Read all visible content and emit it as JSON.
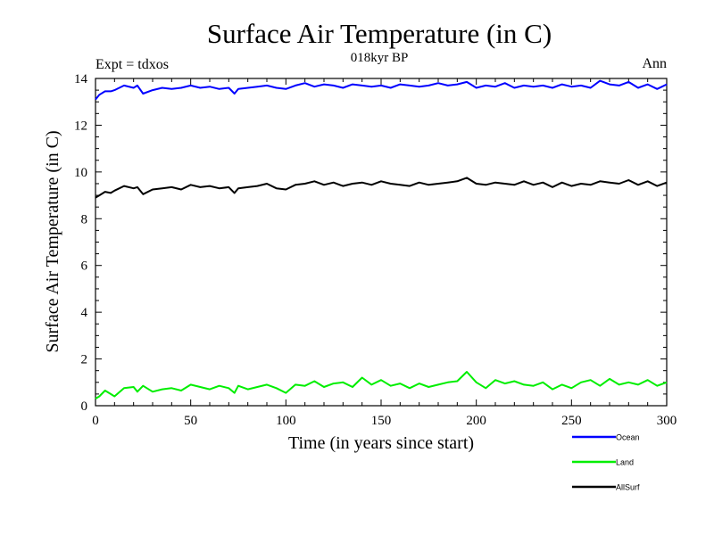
{
  "chart_data": {
    "type": "line",
    "title": "Surface Air Temperature (in C)",
    "subtitle": "018kyr BP",
    "annotation_left": "Expt = tdxos",
    "annotation_right": "Ann",
    "xlabel": "Time (in years since start)",
    "ylabel": "Surface Air Temperature (in C)",
    "xlim": [
      0,
      300
    ],
    "ylim": [
      0,
      14
    ],
    "xticks": [
      0,
      50,
      100,
      150,
      200,
      250,
      300
    ],
    "xtick_labels": [
      "0",
      "50",
      "100",
      "150",
      "200",
      "250",
      "300"
    ],
    "yticks": [
      0,
      2,
      4,
      6,
      8,
      10,
      12,
      14
    ],
    "ytick_labels": [
      "0",
      "2",
      "4",
      "6",
      "8",
      "10",
      "12",
      "14"
    ],
    "grid": false,
    "legend_position": "bottom-right",
    "x": [
      0,
      2,
      5,
      8,
      10,
      15,
      20,
      22,
      25,
      30,
      35,
      40,
      45,
      50,
      55,
      60,
      65,
      70,
      73,
      75,
      80,
      85,
      90,
      95,
      100,
      105,
      110,
      115,
      120,
      125,
      130,
      135,
      140,
      145,
      150,
      155,
      160,
      165,
      170,
      175,
      180,
      185,
      190,
      195,
      200,
      205,
      210,
      215,
      220,
      225,
      230,
      235,
      240,
      245,
      250,
      255,
      260,
      265,
      270,
      275,
      280,
      285,
      290,
      295,
      300
    ],
    "series": [
      {
        "name": "Ocean",
        "color": "#0000ff",
        "values": [
          13.1,
          13.3,
          13.45,
          13.45,
          13.5,
          13.7,
          13.6,
          13.7,
          13.35,
          13.5,
          13.6,
          13.55,
          13.6,
          13.7,
          13.6,
          13.65,
          13.55,
          13.6,
          13.35,
          13.55,
          13.6,
          13.65,
          13.7,
          13.6,
          13.55,
          13.7,
          13.8,
          13.65,
          13.75,
          13.7,
          13.6,
          13.75,
          13.7,
          13.65,
          13.7,
          13.6,
          13.75,
          13.7,
          13.65,
          13.7,
          13.8,
          13.7,
          13.75,
          13.85,
          13.6,
          13.7,
          13.65,
          13.8,
          13.6,
          13.7,
          13.65,
          13.7,
          13.6,
          13.75,
          13.65,
          13.7,
          13.6,
          13.9,
          13.75,
          13.7,
          13.85,
          13.6,
          13.75,
          13.55,
          13.75
        ]
      },
      {
        "name": "Land",
        "color": "#00ee00",
        "values": [
          0.3,
          0.4,
          0.65,
          0.5,
          0.4,
          0.75,
          0.8,
          0.6,
          0.85,
          0.6,
          0.7,
          0.75,
          0.65,
          0.9,
          0.8,
          0.7,
          0.85,
          0.75,
          0.55,
          0.85,
          0.7,
          0.8,
          0.9,
          0.75,
          0.55,
          0.9,
          0.85,
          1.05,
          0.8,
          0.95,
          1.0,
          0.8,
          1.2,
          0.9,
          1.1,
          0.85,
          0.95,
          0.75,
          0.95,
          0.8,
          0.9,
          1.0,
          1.05,
          1.45,
          1.0,
          0.75,
          1.1,
          0.95,
          1.05,
          0.9,
          0.85,
          1.0,
          0.7,
          0.9,
          0.75,
          1.0,
          1.1,
          0.85,
          1.15,
          0.9,
          1.0,
          0.9,
          1.1,
          0.85,
          1.0
        ]
      },
      {
        "name": "AllSurf",
        "color": "#000000",
        "values": [
          8.9,
          9.0,
          9.15,
          9.1,
          9.2,
          9.4,
          9.3,
          9.35,
          9.05,
          9.25,
          9.3,
          9.35,
          9.25,
          9.45,
          9.35,
          9.4,
          9.3,
          9.35,
          9.1,
          9.3,
          9.35,
          9.4,
          9.5,
          9.3,
          9.25,
          9.45,
          9.5,
          9.6,
          9.45,
          9.55,
          9.4,
          9.5,
          9.55,
          9.45,
          9.6,
          9.5,
          9.45,
          9.4,
          9.55,
          9.45,
          9.5,
          9.55,
          9.6,
          9.75,
          9.5,
          9.45,
          9.55,
          9.5,
          9.45,
          9.6,
          9.45,
          9.55,
          9.35,
          9.55,
          9.4,
          9.5,
          9.45,
          9.6,
          9.55,
          9.5,
          9.65,
          9.45,
          9.6,
          9.4,
          9.55
        ]
      }
    ]
  }
}
